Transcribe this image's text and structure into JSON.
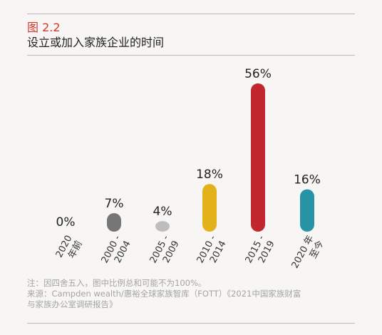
{
  "figure": {
    "label": "图 2.2",
    "title": "设立或加入家族企业的时间"
  },
  "chart_data": {
    "type": "bar",
    "title": "设立或加入家族企业的时间",
    "categories": [
      "2020 年前",
      "2000 - 2004",
      "2005 - 2009",
      "2010 - 2014",
      "2015 - 2019",
      "2020 年至今"
    ],
    "category_lines": [
      [
        "2020",
        "年前"
      ],
      [
        "2000 -",
        "2004"
      ],
      [
        "2005 -",
        "2009"
      ],
      [
        "2010 -",
        "2014"
      ],
      [
        "2015 -",
        "2019"
      ],
      [
        "2020 年",
        "至今"
      ]
    ],
    "values": [
      0,
      7,
      4,
      18,
      56,
      16
    ],
    "value_labels": [
      "0%",
      "7%",
      "4%",
      "18%",
      "56%",
      "16%"
    ],
    "colors": [
      "#c9c9c9",
      "#767676",
      "#bdbdbd",
      "#e3b21b",
      "#c1272d",
      "#2794a6"
    ],
    "ylim": [
      0,
      56
    ],
    "xlabel": "",
    "ylabel": "",
    "grid": false,
    "legend": "none"
  },
  "notes": {
    "note": "注：因四舍五入，图中比例总和可能不为100%。",
    "source_line1": "来源：Campden wealth/惠裕全球家族智库（FOTT）《2021中国家族财富",
    "source_line2": "与家族办公室调研报告》"
  },
  "accent_color": "#d9352a"
}
